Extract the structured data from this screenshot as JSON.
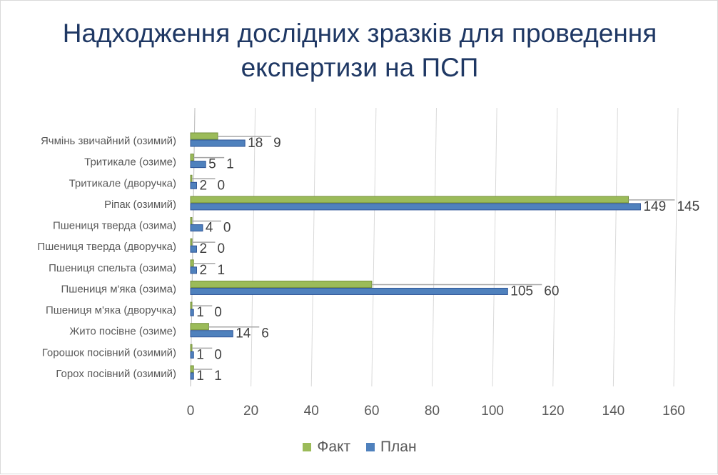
{
  "chart_data": {
    "type": "bar",
    "orientation": "horizontal",
    "title": "Надходження дослідних зразків для проведення експертизи на ПСП",
    "categories": [
      "Ячмінь звичайний (озимий)",
      "Тритикале (озиме)",
      "Тритикале (дворучка)",
      "Ріпак (озимий)",
      "Пшениця тверда (озима)",
      "Пшениця тверда (дворучка)",
      "Пшениця спельта (озима)",
      "Пшениця м'яка (озима)",
      "Пшениця м'яка (дворучка)",
      "Жито посівне (озиме)",
      "Горошок посівний (озимий)",
      "Горох посівний (озимий)"
    ],
    "series": [
      {
        "name": "Факт",
        "color": "#9bbb59",
        "values": [
          9,
          1,
          0,
          145,
          0,
          0,
          1,
          60,
          0,
          6,
          0,
          1
        ]
      },
      {
        "name": "План",
        "color": "#4f81bd",
        "values": [
          18,
          5,
          2,
          149,
          4,
          2,
          2,
          105,
          1,
          14,
          1,
          1
        ]
      }
    ],
    "xlim": [
      0,
      160
    ],
    "xticks": [
      0,
      20,
      40,
      60,
      80,
      100,
      120,
      140,
      160
    ],
    "grid": true,
    "legend": "bottom"
  }
}
